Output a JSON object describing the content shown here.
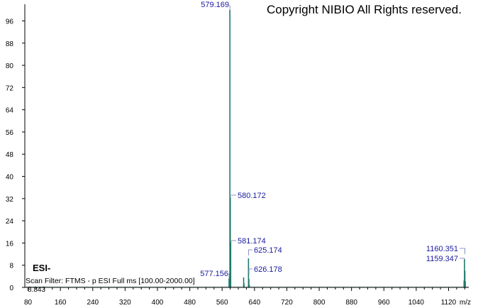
{
  "copyright": "Copyright NIBIO All Rights reserved.",
  "ionization_mode": "ESI-",
  "scan_filter": "Scan Filter: FTMS - p ESI Full ms [100.00-2000.00]",
  "corner_value": "8.843",
  "colors": {
    "peak": "#1f7a6b",
    "label": "#1a1aa0",
    "axis": "#000000"
  },
  "chart_data": {
    "type": "bar",
    "xlabel": "m/z",
    "ylabel": "",
    "xlim": [
      72,
      1170
    ],
    "ylim": [
      0,
      102
    ],
    "x_ticks": [
      80,
      160,
      240,
      320,
      400,
      480,
      560,
      640,
      720,
      800,
      880,
      960,
      1040,
      1120
    ],
    "y_ticks": [
      0,
      8,
      16,
      24,
      32,
      40,
      48,
      56,
      64,
      72,
      80,
      88,
      96
    ],
    "peaks": [
      {
        "mz": 577.156,
        "intensity": 3.2,
        "label": "577.156"
      },
      {
        "mz": 579.169,
        "intensity": 100,
        "label": "579.169"
      },
      {
        "mz": 580.172,
        "intensity": 32.5,
        "label": "580.172"
      },
      {
        "mz": 581.174,
        "intensity": 16.5,
        "label": "581.174"
      },
      {
        "mz": 613.2,
        "intensity": 3.6,
        "label": ""
      },
      {
        "mz": 614.2,
        "intensity": 1.4,
        "label": ""
      },
      {
        "mz": 625.174,
        "intensity": 10.5,
        "label": "625.174"
      },
      {
        "mz": 626.178,
        "intensity": 3.0,
        "label": "626.178"
      },
      {
        "mz": 627.18,
        "intensity": 0.9,
        "label": ""
      },
      {
        "mz": 1158.3,
        "intensity": 2.5,
        "label": ""
      },
      {
        "mz": 1159.347,
        "intensity": 10.2,
        "label": "1159.347"
      },
      {
        "mz": 1160.351,
        "intensity": 6.0,
        "label": "1160.351"
      },
      {
        "mz": 1161.35,
        "intensity": 2.2,
        "label": ""
      }
    ]
  }
}
